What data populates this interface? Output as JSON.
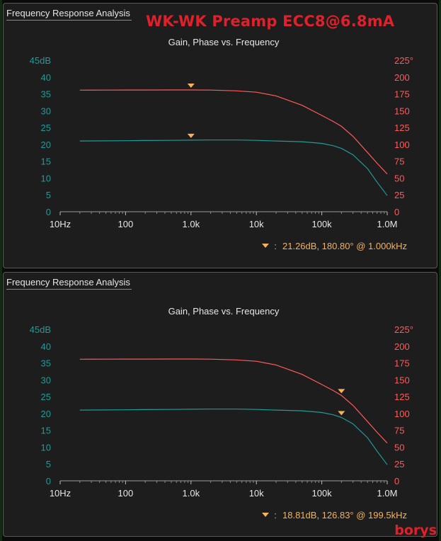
{
  "overlay_title": "WK-WK Preamp ECC8@6.8mA",
  "watermark": "borys",
  "colors": {
    "gain": "#1f9b98",
    "phase": "#ff5a5a",
    "marker": "#f7b15a",
    "grid": "#3b3b3b",
    "panel_bg": "#1d1d1d"
  },
  "chart_data": [
    {
      "type": "line",
      "panel_title": "Frequency Response Analysis",
      "title": "Gain, Phase vs. Frequency",
      "x_scale": "log",
      "x_ticks": [
        10,
        100,
        1000,
        10000,
        100000,
        1000000
      ],
      "x_tick_labels": [
        "10Hz",
        "100",
        "1.0k",
        "10k",
        "100k",
        "1.0M"
      ],
      "y_left_ticks": [
        0,
        5,
        10,
        15,
        20,
        25,
        30,
        35,
        40,
        45
      ],
      "y_left_tick_labels": [
        "0",
        "5",
        "10",
        "15",
        "20",
        "25",
        "30",
        "35",
        "40",
        "45dB"
      ],
      "y_left_lim": [
        0,
        45
      ],
      "y_right_ticks": [
        0,
        25,
        50,
        75,
        100,
        125,
        150,
        175,
        200,
        225
      ],
      "y_right_tick_labels": [
        "0",
        "25",
        "50",
        "75",
        "100",
        "125",
        "150",
        "175",
        "200",
        "225°"
      ],
      "y_right_lim": [
        0,
        225
      ],
      "grid": false,
      "series": [
        {
          "axis": "left",
          "color": "#1f9b98",
          "x": [
            20,
            50,
            100,
            200,
            500,
            1000,
            2000,
            5000,
            10000,
            20000,
            50000,
            100000,
            150000,
            200000,
            300000,
            500000,
            700000,
            1000000
          ],
          "y": [
            21.0,
            21.05,
            21.1,
            21.15,
            21.2,
            21.26,
            21.3,
            21.3,
            21.2,
            21.0,
            20.8,
            20.3,
            19.6,
            18.8,
            16.9,
            12.8,
            8.8,
            4.8
          ]
        },
        {
          "axis": "right",
          "color": "#ff5a5a",
          "x": [
            20,
            50,
            100,
            200,
            500,
            1000,
            2000,
            5000,
            10000,
            20000,
            50000,
            100000,
            150000,
            200000,
            300000,
            500000,
            700000,
            1000000
          ],
          "y": [
            180.5,
            180.6,
            180.7,
            180.7,
            180.8,
            180.8,
            180.6,
            179.5,
            177.5,
            172.0,
            158.0,
            143.0,
            134.0,
            126.8,
            112.0,
            88.0,
            72.0,
            56.0
          ]
        }
      ],
      "markers": [
        {
          "axis": "right",
          "x": 1000,
          "y": 180.8
        },
        {
          "axis": "left",
          "x": 1000,
          "y": 21.26
        }
      ],
      "readout": "21.26dB, 180.80° @ 1.000kHz",
      "readout_separator": ":"
    },
    {
      "type": "line",
      "panel_title": "Frequency Response Analysis",
      "title": "Gain, Phase vs. Frequency",
      "x_scale": "log",
      "x_ticks": [
        10,
        100,
        1000,
        10000,
        100000,
        1000000
      ],
      "x_tick_labels": [
        "10Hz",
        "100",
        "1.0k",
        "10k",
        "100k",
        "1.0M"
      ],
      "y_left_ticks": [
        0,
        5,
        10,
        15,
        20,
        25,
        30,
        35,
        40,
        45
      ],
      "y_left_tick_labels": [
        "0",
        "5",
        "10",
        "15",
        "20",
        "25",
        "30",
        "35",
        "40",
        "45dB"
      ],
      "y_left_lim": [
        0,
        45
      ],
      "y_right_ticks": [
        0,
        25,
        50,
        75,
        100,
        125,
        150,
        175,
        200,
        225
      ],
      "y_right_tick_labels": [
        "0",
        "25",
        "50",
        "75",
        "100",
        "125",
        "150",
        "175",
        "200",
        "225°"
      ],
      "y_right_lim": [
        0,
        225
      ],
      "grid": false,
      "series": [
        {
          "axis": "left",
          "color": "#1f9b98",
          "x": [
            20,
            50,
            100,
            200,
            500,
            1000,
            2000,
            5000,
            10000,
            20000,
            50000,
            100000,
            150000,
            199500,
            300000,
            500000,
            700000,
            1000000
          ],
          "y": [
            21.0,
            21.05,
            21.1,
            21.15,
            21.2,
            21.26,
            21.3,
            21.3,
            21.2,
            21.0,
            20.8,
            20.3,
            19.6,
            18.81,
            16.9,
            12.8,
            8.8,
            4.8
          ]
        },
        {
          "axis": "right",
          "color": "#ff5a5a",
          "x": [
            20,
            50,
            100,
            200,
            500,
            1000,
            2000,
            5000,
            10000,
            20000,
            50000,
            100000,
            150000,
            199500,
            300000,
            500000,
            700000,
            1000000
          ],
          "y": [
            180.5,
            180.6,
            180.7,
            180.7,
            180.8,
            180.8,
            180.6,
            179.5,
            177.5,
            172.0,
            158.0,
            143.0,
            134.0,
            126.83,
            112.0,
            88.0,
            72.0,
            56.0
          ]
        }
      ],
      "markers": [
        {
          "axis": "right",
          "x": 199500,
          "y": 126.83
        },
        {
          "axis": "left",
          "x": 199500,
          "y": 18.81
        }
      ],
      "readout": "18.81dB, 126.83° @ 199.5kHz",
      "readout_separator": ":"
    }
  ]
}
